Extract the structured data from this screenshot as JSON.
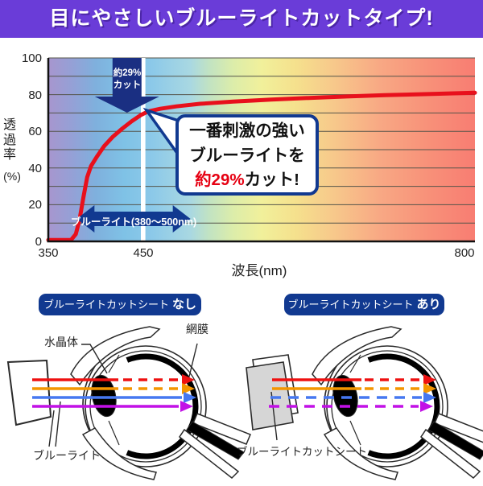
{
  "banner": {
    "title": "目にやさしいブルーライトカットタイプ!"
  },
  "colors": {
    "banner_bg": "#6a3cd8",
    "navy": "#113990",
    "navy_dark": "#1a2f82",
    "curve_red": "#e8101c",
    "text_red": "#e60012",
    "arrow_red": "#ee1111",
    "arrow_orange": "#f49600",
    "arrow_blue": "#4678f0",
    "arrow_purple": "#c211e6",
    "sheet_gray": "#d6d6d6",
    "outline": "#2a2a2a",
    "grid_line": "#55544a"
  },
  "chart_data": {
    "type": "line",
    "title": "",
    "xlabel": "波長(nm)",
    "ylabel": "透過率(%)",
    "ylabel_vertical": "透過率",
    "ylabel_unit": "(%)",
    "xlim": [
      350,
      800
    ],
    "ylim": [
      0,
      100
    ],
    "x_tick_labels": [
      "350",
      "450",
      "800"
    ],
    "y_tick_labels": [
      "100",
      "80",
      "60",
      "40",
      "20",
      "0"
    ],
    "grid": "horizontal lines every 10%",
    "background": "visible-light spectrum gradient",
    "marker_wavelength": 450,
    "cut_arrow": {
      "wavelength": 450,
      "label_line1": "約29%",
      "label_line2": "カット"
    },
    "blue_light_band": {
      "from": 380,
      "to": 500,
      "label": "ブルーライト(380〜500nm)"
    },
    "callout": {
      "line1": "一番刺激の強い",
      "line2": "ブルーライトを",
      "line3_highlight": "約29%",
      "line3_rest": "カット!"
    },
    "spectrum_stops": [
      {
        "offset": 0,
        "color": "#a796ce"
      },
      {
        "offset": 0.055,
        "color": "#95a0d6"
      },
      {
        "offset": 0.111,
        "color": "#7fb0dd"
      },
      {
        "offset": 0.178,
        "color": "#7fc2e6"
      },
      {
        "offset": 0.244,
        "color": "#8cc9e9"
      },
      {
        "offset": 0.333,
        "color": "#a9d8e2"
      },
      {
        "offset": 0.378,
        "color": "#c2e3c2"
      },
      {
        "offset": 0.433,
        "color": "#dcedaa"
      },
      {
        "offset": 0.5,
        "color": "#f1f09b"
      },
      {
        "offset": 0.578,
        "color": "#f5e18d"
      },
      {
        "offset": 0.667,
        "color": "#f7c98b"
      },
      {
        "offset": 0.778,
        "color": "#f8a884"
      },
      {
        "offset": 0.889,
        "color": "#f89179"
      },
      {
        "offset": 1,
        "color": "#f87d72"
      }
    ],
    "series": [
      {
        "name": "透過率",
        "color": "#e8101c",
        "points": [
          [
            350,
            0.8
          ],
          [
            374,
            0.8
          ],
          [
            379,
            4
          ],
          [
            383,
            12
          ],
          [
            387,
            24
          ],
          [
            391,
            35
          ],
          [
            395,
            41
          ],
          [
            401,
            46
          ],
          [
            409,
            52
          ],
          [
            418,
            57
          ],
          [
            428,
            61.5
          ],
          [
            438,
            65.5
          ],
          [
            448,
            69
          ],
          [
            455,
            70.8
          ],
          [
            468,
            72.3
          ],
          [
            485,
            73.6
          ],
          [
            510,
            75
          ],
          [
            545,
            76.2
          ],
          [
            585,
            77.3
          ],
          [
            625,
            78.2
          ],
          [
            665,
            79
          ],
          [
            705,
            79.7
          ],
          [
            755,
            80.4
          ],
          [
            800,
            81
          ]
        ]
      }
    ]
  },
  "diagrams": {
    "left": {
      "header_prefix": "ブルーライトカットシート",
      "header_suffix": "なし",
      "labels": {
        "lens": "水晶体",
        "retina": "網膜",
        "blue_light": "ブルーライト"
      }
    },
    "right": {
      "header_prefix": "ブルーライトカットシート",
      "header_suffix": "あり",
      "labels": {
        "cut_sheet": "ブルーライトカットシート"
      }
    }
  }
}
